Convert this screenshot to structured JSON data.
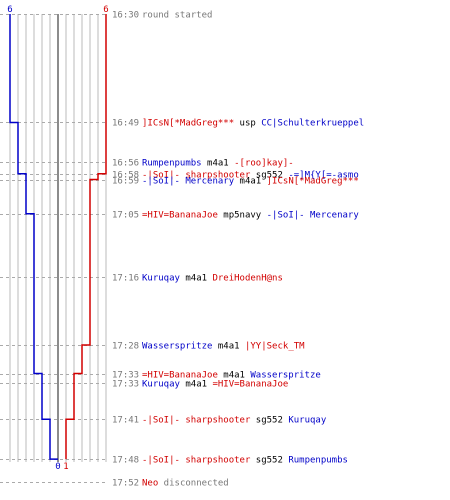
{
  "chart_data": {
    "type": "line",
    "title": "",
    "xlabel": "",
    "ylabel": "",
    "ylim": [
      0,
      6
    ],
    "colors": {
      "blue": "#0000c8",
      "red": "#d20000",
      "black": "#000000",
      "gray": "#777777",
      "grid": "#bbbbbb",
      "dash": "#aaaaaa"
    },
    "end_labels": {
      "blue_top": "6",
      "red_top": "6",
      "blue_bottom": "0",
      "red_bottom": "1"
    },
    "series": [
      {
        "team": "blue",
        "steps": [
          {
            "time": "16:30",
            "value": 6
          },
          {
            "time": "16:49",
            "value": 5
          },
          {
            "time": "16:56",
            "value": 5
          },
          {
            "time": "16:58",
            "value": 4
          },
          {
            "time": "17:05",
            "value": 3
          },
          {
            "time": "17:16",
            "value": 3
          },
          {
            "time": "17:28",
            "value": 3
          },
          {
            "time": "17:33",
            "value": 2
          },
          {
            "time": "17:41",
            "value": 1
          },
          {
            "time": "17:48",
            "value": 0
          }
        ]
      },
      {
        "team": "red",
        "steps": [
          {
            "time": "16:30",
            "value": 6
          },
          {
            "time": "16:56",
            "value": 6
          },
          {
            "time": "16:58",
            "value": 5
          },
          {
            "time": "16:59",
            "value": 4
          },
          {
            "time": "17:28",
            "value": 3
          },
          {
            "time": "17:33",
            "value": 2
          },
          {
            "time": "17:41",
            "value": 1
          },
          {
            "time": "17:48",
            "value": 1
          }
        ]
      }
    ],
    "events": [
      {
        "time": "16:30",
        "parts": [
          {
            "text": "round started",
            "color": "gray"
          }
        ]
      },
      {
        "time": "16:49",
        "parts": [
          {
            "text": "]ICsN[*MadGreg***",
            "color": "red"
          },
          {
            "text": " usp ",
            "color": "black"
          },
          {
            "text": "CC|Schulterkrueppel",
            "color": "blue"
          }
        ]
      },
      {
        "time": "16:56",
        "parts": [
          {
            "text": "Rumpenpumbs",
            "color": "blue"
          },
          {
            "text": " m4a1 ",
            "color": "black"
          },
          {
            "text": "-[roo]kay]-",
            "color": "red"
          }
        ]
      },
      {
        "time": "16:58",
        "parts": [
          {
            "text": "-|SoI|- sharpshooter",
            "color": "red"
          },
          {
            "text": " sg552 ",
            "color": "black"
          },
          {
            "text": "-=]M{Y[=-asmo",
            "color": "blue"
          }
        ]
      },
      {
        "time": "16:59",
        "parts": [
          {
            "text": "-|SoI|- Mercenary",
            "color": "blue"
          },
          {
            "text": " m4a1 ",
            "color": "black"
          },
          {
            "text": "]ICsN[*MadGreg***",
            "color": "red"
          }
        ]
      },
      {
        "time": "17:05",
        "parts": [
          {
            "text": "=HIV=BananaJoe",
            "color": "red"
          },
          {
            "text": " mp5navy ",
            "color": "black"
          },
          {
            "text": "-|SoI|- Mercenary",
            "color": "blue"
          }
        ]
      },
      {
        "time": "17:16",
        "parts": [
          {
            "text": "Kuruqay",
            "color": "blue"
          },
          {
            "text": " m4a1 ",
            "color": "black"
          },
          {
            "text": "DreiHodenH@ns",
            "color": "red"
          }
        ]
      },
      {
        "time": "17:28",
        "parts": [
          {
            "text": "Wasserspritze",
            "color": "blue"
          },
          {
            "text": " m4a1 ",
            "color": "black"
          },
          {
            "text": "|YY|Seck_TM",
            "color": "red"
          }
        ]
      },
      {
        "time": "17:33",
        "parts": [
          {
            "text": "=HIV=BananaJoe",
            "color": "red"
          },
          {
            "text": " m4a1 ",
            "color": "black"
          },
          {
            "text": "Wasserspritze",
            "color": "blue"
          }
        ]
      },
      {
        "time": "17:33",
        "parts": [
          {
            "text": "Kuruqay",
            "color": "blue"
          },
          {
            "text": " m4a1 ",
            "color": "black"
          },
          {
            "text": "=HIV=BananaJoe",
            "color": "red"
          }
        ]
      },
      {
        "time": "17:41",
        "parts": [
          {
            "text": "-|SoI|- sharpshooter",
            "color": "red"
          },
          {
            "text": " sg552 ",
            "color": "black"
          },
          {
            "text": "Kuruqay",
            "color": "blue"
          }
        ]
      },
      {
        "time": "17:48",
        "parts": [
          {
            "text": "-|SoI|- sharpshooter",
            "color": "red"
          },
          {
            "text": " sg552 ",
            "color": "black"
          },
          {
            "text": "Rumpenpumbs",
            "color": "blue"
          }
        ]
      },
      {
        "time": "17:52",
        "parts": [
          {
            "text": "Neo",
            "color": "red"
          },
          {
            "text": " disconnected",
            "color": "gray"
          }
        ]
      }
    ]
  }
}
